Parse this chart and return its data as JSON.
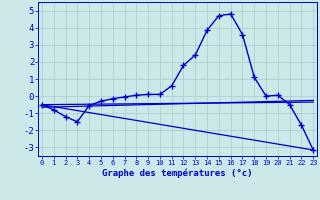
{
  "bg_color": "#cce8e8",
  "grid_color": "#aacccc",
  "line_color": "#0000cc",
  "xlabel": "Graphe des températures (°c)",
  "xlabel_color": "#0000cc",
  "tick_color": "#0000cc",
  "x_ticks": [
    0,
    1,
    2,
    3,
    4,
    5,
    6,
    7,
    8,
    9,
    10,
    11,
    12,
    13,
    14,
    15,
    16,
    17,
    18,
    19,
    20,
    21,
    22,
    23
  ],
  "ylim": [
    -3.5,
    5.5
  ],
  "yticks": [
    -3,
    -2,
    -1,
    0,
    1,
    2,
    3,
    4,
    5
  ],
  "main_line": [
    -0.5,
    -0.8,
    -1.2,
    -1.5,
    -0.55,
    -0.3,
    -0.15,
    -0.05,
    0.05,
    0.1,
    0.1,
    0.6,
    1.8,
    2.4,
    3.85,
    4.7,
    4.8,
    3.6,
    1.1,
    0.0,
    0.05,
    -0.5,
    -1.7,
    -3.15
  ],
  "trend1": [
    -0.5,
    -0.35
  ],
  "trend2": [
    -0.65,
    -0.25
  ],
  "trend3": [
    -0.5,
    -3.15
  ]
}
